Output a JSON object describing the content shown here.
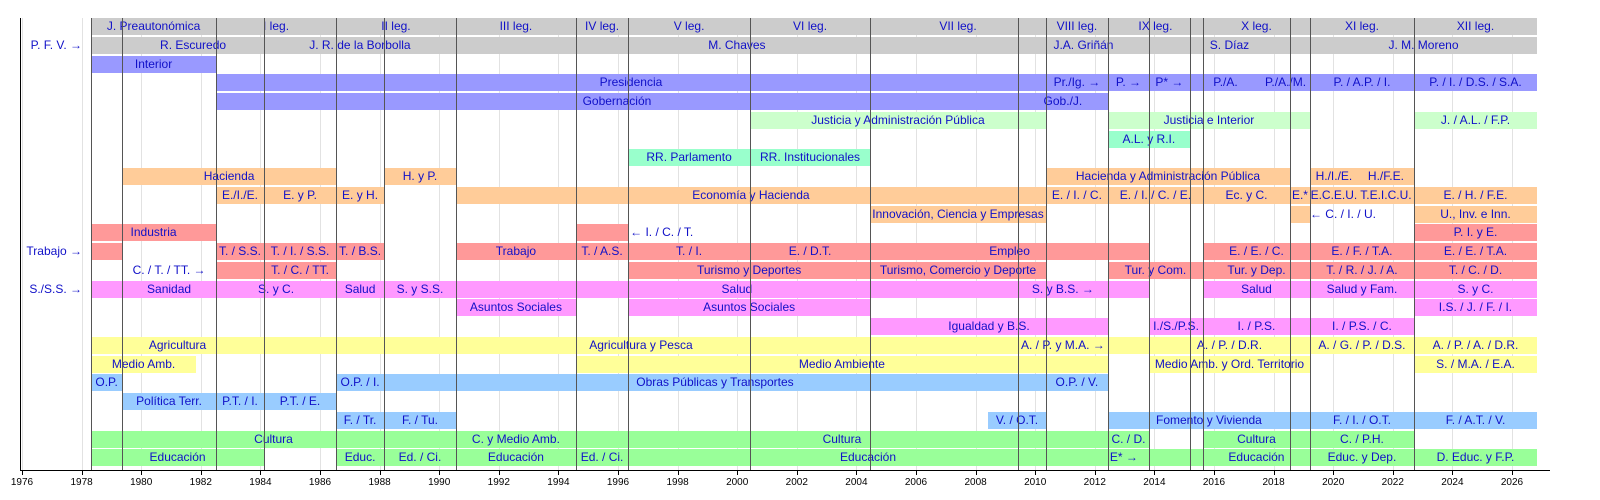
{
  "chart_data": {
    "type": "timeline",
    "title": "",
    "xlabel": "",
    "xlim": [
      1976,
      2026.9
    ],
    "xticks": [
      1976,
      1978,
      1980,
      1982,
      1984,
      1986,
      1988,
      1990,
      1992,
      1994,
      1996,
      1998,
      2000,
      2002,
      2004,
      2006,
      2008,
      2010,
      2012,
      2014,
      2016,
      2018,
      2020,
      2022,
      2024,
      2026
    ],
    "transitions": [
      1978.32,
      1979.36,
      1982.51,
      1984.12,
      1986.54,
      1988.15,
      1990.56,
      1994.59,
      1996.34,
      2000.43,
      2004.46,
      2009.42,
      2010.36,
      2012.44,
      2013.82,
      2015.19,
      2015.63,
      2018.55,
      2019.22,
      2022.71
    ],
    "rows": [
      {
        "name": "legislatures",
        "color": "#cccccc",
        "segments": [
          {
            "s": 1978.32,
            "e": 1982.51,
            "t": "J. Preautonómica"
          },
          {
            "s": 1982.51,
            "e": 1986.54,
            "t": "I leg."
          },
          {
            "s": 1986.54,
            "e": 1990.56,
            "t": "II leg."
          },
          {
            "s": 1990.56,
            "e": 1994.59,
            "t": "III leg."
          },
          {
            "s": 1994.59,
            "e": 1996.34,
            "t": "IV leg."
          },
          {
            "s": 1996.34,
            "e": 2000.43,
            "t": "V leg."
          },
          {
            "s": 2000.43,
            "e": 2004.46,
            "t": "VI leg."
          },
          {
            "s": 2004.46,
            "e": 2010.36,
            "t": "VII leg."
          },
          {
            "s": 2010.36,
            "e": 2012.44,
            "t": "VIII leg."
          },
          {
            "s": 2012.44,
            "e": 2015.63,
            "t": "IX leg."
          },
          {
            "s": 2015.63,
            "e": 2019.22,
            "t": "X leg."
          },
          {
            "s": 2019.22,
            "e": 2022.71,
            "t": "XI leg."
          },
          {
            "s": 2022.71,
            "e": 2026.84,
            "t": "XII leg."
          }
        ]
      },
      {
        "name": "presidents",
        "color": "#cccccc",
        "left": "P. F. V. →",
        "segments": [
          {
            "s": 1978.32,
            "e": 1979.36,
            "t": ""
          },
          {
            "s": 1979.36,
            "e": 1984.12,
            "t": "R. Escuredo"
          },
          {
            "s": 1984.12,
            "e": 1990.56,
            "t": "J. R. de la Borbolla"
          },
          {
            "s": 1990.56,
            "e": 2009.42,
            "t": "M. Chaves"
          },
          {
            "s": 2009.42,
            "e": 2013.82,
            "t": "J.A. Griñán"
          },
          {
            "s": 2013.82,
            "e": 2019.22,
            "t": "S. Díaz"
          },
          {
            "s": 2019.22,
            "e": 2026.84,
            "t": "J. M. Moreno"
          }
        ]
      },
      {
        "name": "interior",
        "color": "#9999ff",
        "segments": [
          {
            "s": 1978.32,
            "e": 1982.51,
            "t": "Interior"
          }
        ]
      },
      {
        "name": "presidencia",
        "color": "#9999ff",
        "segments": [
          {
            "s": 1982.51,
            "e": 2010.36,
            "t": "Presidencia"
          },
          {
            "s": 2010.36,
            "e": 2012.44,
            "t": "Pr./Ig. →"
          },
          {
            "s": 2012.44,
            "e": 2013.82,
            "t": "P. →"
          },
          {
            "s": 2013.82,
            "e": 2015.19,
            "t": "P* →"
          },
          {
            "s": 2015.19,
            "e": 2017.58,
            "t": "P./A."
          },
          {
            "s": 2017.58,
            "e": 2019.22,
            "t": "P./A./M."
          },
          {
            "s": 2019.22,
            "e": 2022.71,
            "t": "P. / A.P. / I."
          },
          {
            "s": 2022.71,
            "e": 2026.84,
            "t": "P. / I. / D.S. / S.A."
          }
        ]
      },
      {
        "name": "gobernacion",
        "color": "#9999ff",
        "segments": [
          {
            "s": 1982.51,
            "e": 2009.42,
            "t": "Gobernación"
          },
          {
            "s": 2009.42,
            "e": 2012.44,
            "t": "Gob./J."
          }
        ]
      },
      {
        "name": "justicia",
        "color": "#ccffcc",
        "segments": [
          {
            "s": 2000.43,
            "e": 2010.36,
            "t": "Justicia y Administración Pública"
          },
          {
            "s": 2012.44,
            "e": 2019.22,
            "t": "Justicia e Interior"
          },
          {
            "s": 2022.71,
            "e": 2026.84,
            "t": "J. / A.L. / F.P."
          }
        ]
      },
      {
        "name": "relaciones",
        "color": "#99ffcc",
        "segments": [
          {
            "s": 1996.34,
            "e": 2000.43,
            "t": "RR. Parlamento",
            "row": 7
          },
          {
            "s": 2012.44,
            "e": 2015.19,
            "t": "A.L. y R.I."
          }
        ]
      },
      {
        "name": "rr-institucionales",
        "color": "#99ffcc",
        "segments": [
          {
            "s": 1996.34,
            "e": 2000.43,
            "t": "RR. Parlamento"
          },
          {
            "s": 2000.43,
            "e": 2004.46,
            "t": "RR. Institucionales"
          }
        ]
      },
      {
        "name": "hacienda",
        "color": "#ffcc99",
        "segments": [
          {
            "s": 1979.36,
            "e": 1986.54,
            "t": "Hacienda"
          },
          {
            "s": 1988.15,
            "e": 1990.56,
            "t": "H. y P."
          },
          {
            "s": 2010.36,
            "e": 2018.55,
            "t": "Hacienda y Administración Pública"
          },
          {
            "s": 2019.22,
            "e": 2020.83,
            "t": "H./I./E."
          },
          {
            "s": 2020.83,
            "e": 2022.71,
            "t": "H./F.E."
          }
        ]
      },
      {
        "name": "economia",
        "color": "#ffcc99",
        "segments": [
          {
            "s": 1982.51,
            "e": 1984.12,
            "t": "E./I./E."
          },
          {
            "s": 1984.12,
            "e": 1986.54,
            "t": "E. y P."
          },
          {
            "s": 1986.54,
            "e": 1988.15,
            "t": "E. y H."
          },
          {
            "s": 1990.56,
            "e": 2010.36,
            "t": "Economía y Hacienda"
          },
          {
            "s": 2010.36,
            "e": 2012.44,
            "t": "E. / I. / C."
          },
          {
            "s": 2012.44,
            "e": 2015.63,
            "t": "E. / I. / C. / E."
          },
          {
            "s": 2015.63,
            "e": 2018.55,
            "t": "Ec. y C."
          },
          {
            "s": 2018.55,
            "e": 2019.22,
            "t": "E.*"
          },
          {
            "s": 2019.22,
            "e": 2020.83,
            "t": "E.C.E.U."
          },
          {
            "s": 2020.83,
            "e": 2022.71,
            "t": "T.E.I.C.U."
          },
          {
            "s": 2022.71,
            "e": 2026.84,
            "t": "E. / H. / F.E."
          }
        ]
      },
      {
        "name": "innovacion",
        "color": "#ffcc99",
        "segments": [
          {
            "s": 2004.46,
            "e": 2010.36,
            "t": "Innovación, Ciencia y Empresas"
          },
          {
            "s": 2018.55,
            "e": 2019.22,
            "t": ""
          },
          {
            "s": 2019.22,
            "e": 2020.83,
            "t": "← C. / I. / U.",
            "nobar": true
          },
          {
            "s": 2022.71,
            "e": 2026.84,
            "t": "U., Inv. e Inn."
          }
        ]
      },
      {
        "name": "industria",
        "color": "#ff9999",
        "segments": [
          {
            "s": 1978.32,
            "e": 1982.51,
            "t": "Industria"
          },
          {
            "s": 1994.59,
            "e": 1996.34,
            "t": ""
          },
          {
            "s": 1996.34,
            "e": 1999.0,
            "t": "← I. / C. / T.",
            "nobar": true,
            "align": "left"
          },
          {
            "s": 2022.71,
            "e": 2026.84,
            "t": "P. I. y E."
          }
        ]
      },
      {
        "name": "trabajo",
        "color": "#ff9999",
        "left": "Trabajo →",
        "segments": [
          {
            "s": 1978.32,
            "e": 1979.36,
            "t": ""
          },
          {
            "s": 1982.51,
            "e": 1984.12,
            "t": "T. / S.S."
          },
          {
            "s": 1984.12,
            "e": 1986.54,
            "t": "T. / I. / S.S."
          },
          {
            "s": 1986.54,
            "e": 1988.15,
            "t": "T. / B.S."
          },
          {
            "s": 1990.56,
            "e": 1994.59,
            "t": "Trabajo"
          },
          {
            "s": 1994.59,
            "e": 1996.34,
            "t": "T. / A.S."
          },
          {
            "s": 1996.34,
            "e": 2000.43,
            "t": "T. / I."
          },
          {
            "s": 2000.43,
            "e": 2004.46,
            "t": "E. / D.T."
          },
          {
            "s": 2004.46,
            "e": 2013.82,
            "t": "Empleo"
          },
          {
            "s": 2015.63,
            "e": 2019.22,
            "t": "E. / E. / C."
          },
          {
            "s": 2019.22,
            "e": 2022.71,
            "t": "E. / F. / T.A."
          },
          {
            "s": 2022.71,
            "e": 2026.84,
            "t": "E. / E. / T.A."
          }
        ]
      },
      {
        "name": "turismo",
        "color": "#ff9999",
        "segments": [
          {
            "s": 1979.36,
            "e": 1982.51,
            "t": "C. / T. / TT. →",
            "nobar": true
          },
          {
            "s": 1982.51,
            "e": 1984.12,
            "t": ""
          },
          {
            "s": 1984.12,
            "e": 1986.54,
            "t": "T. / C. / TT."
          },
          {
            "s": 1996.34,
            "e": 2004.46,
            "t": "Turismo y Deportes"
          },
          {
            "s": 2004.46,
            "e": 2010.36,
            "t": "Turismo, Comercio y Deporte"
          },
          {
            "s": 2012.44,
            "e": 2015.63,
            "t": "Tur. y Com."
          },
          {
            "s": 2015.63,
            "e": 2019.22,
            "t": "Tur. y Dep."
          },
          {
            "s": 2019.22,
            "e": 2022.71,
            "t": "T. / R. / J. / A."
          },
          {
            "s": 2022.71,
            "e": 2026.84,
            "t": "T. / C. / D."
          }
        ]
      },
      {
        "name": "sanidad",
        "color": "#ff99ff",
        "left": "S./S.S. →",
        "segments": [
          {
            "s": 1978.32,
            "e": 1979.36,
            "t": ""
          },
          {
            "s": 1979.36,
            "e": 1982.51,
            "t": "Sanidad"
          },
          {
            "s": 1982.51,
            "e": 1986.54,
            "t": "S. y C."
          },
          {
            "s": 1986.54,
            "e": 1988.15,
            "t": "Salud"
          },
          {
            "s": 1988.15,
            "e": 1990.56,
            "t": "S. y S.S."
          },
          {
            "s": 1990.56,
            "e": 2009.42,
            "t": "Salud"
          },
          {
            "s": 2009.42,
            "e": 2012.44,
            "t": "S. y B.S. →"
          },
          {
            "s": 2012.44,
            "e": 2013.82,
            "t": ""
          },
          {
            "s": 2015.63,
            "e": 2019.22,
            "t": "Salud"
          },
          {
            "s": 2019.22,
            "e": 2022.71,
            "t": "Salud y Fam."
          },
          {
            "s": 2022.71,
            "e": 2026.84,
            "t": "S. y C."
          }
        ]
      },
      {
        "name": "asuntos-sociales",
        "color": "#ff99ff",
        "segments": [
          {
            "s": 1990.56,
            "e": 1994.59,
            "t": "Asuntos Sociales"
          },
          {
            "s": 1996.34,
            "e": 2004.46,
            "t": "Asuntos Sociales"
          },
          {
            "s": 2022.71,
            "e": 2026.84,
            "t": "I.S. / J. / F. / I."
          }
        ]
      },
      {
        "name": "igualdad",
        "color": "#ff99ff",
        "segments": [
          {
            "s": 2004.46,
            "e": 2012.44,
            "t": "Igualdad y B.S."
          },
          {
            "s": 2013.82,
            "e": 2015.63,
            "t": "I./S./P.S."
          },
          {
            "s": 2015.63,
            "e": 2019.22,
            "t": "I. / P.S."
          },
          {
            "s": 2019.22,
            "e": 2022.71,
            "t": "I. / P.S. / C."
          }
        ]
      },
      {
        "name": "agricultura",
        "color": "#ffff99",
        "segments": [
          {
            "s": 1978.32,
            "e": 1984.12,
            "t": "Agricultura"
          },
          {
            "s": 1984.12,
            "e": 2009.42,
            "t": "Agricultura y Pesca"
          },
          {
            "s": 2009.42,
            "e": 2012.44,
            "t": "A. / P. y M.A. →"
          },
          {
            "s": 2012.44,
            "e": 2013.82,
            "t": ""
          },
          {
            "s": 2013.82,
            "e": 2019.22,
            "t": "A. / P. / D.R."
          },
          {
            "s": 2019.22,
            "e": 2022.71,
            "t": "A. / G. / P. / D.S."
          },
          {
            "s": 2022.71,
            "e": 2026.84,
            "t": "A. / P. / A. / D.R."
          }
        ]
      },
      {
        "name": "medio-ambiente",
        "color": "#ffff99",
        "segments": [
          {
            "s": 1978.32,
            "e": 1981.84,
            "t": "Medio Amb."
          },
          {
            "s": 1994.59,
            "e": 2012.44,
            "t": "Medio Ambiente"
          },
          {
            "s": 2013.82,
            "e": 2019.22,
            "t": "Medio Amb. y Ord. Territorio"
          },
          {
            "s": 2022.71,
            "e": 2026.84,
            "t": "S. / M.A. / E.A."
          }
        ]
      },
      {
        "name": "obras-publicas",
        "color": "#99ccff",
        "segments": [
          {
            "s": 1978.32,
            "e": 1979.36,
            "t": "O.P."
          },
          {
            "s": 1986.54,
            "e": 1988.15,
            "t": "O.P. / I."
          },
          {
            "s": 1988.15,
            "e": 2010.36,
            "t": "Obras Públicas y Transportes"
          },
          {
            "s": 2010.36,
            "e": 2012.44,
            "t": "O.P. / V."
          }
        ]
      },
      {
        "name": "politica-territorial",
        "color": "#99ccff",
        "segments": [
          {
            "s": 1979.36,
            "e": 1982.51,
            "t": "Política Terr."
          },
          {
            "s": 1982.51,
            "e": 1984.12,
            "t": "P.T. / I."
          },
          {
            "s": 1984.12,
            "e": 1986.54,
            "t": "P.T. / E."
          }
        ]
      },
      {
        "name": "fomento",
        "color": "#99ccff",
        "segments": [
          {
            "s": 1986.54,
            "e": 1988.15,
            "t": "F. / Tr."
          },
          {
            "s": 1988.15,
            "e": 1990.56,
            "t": "F. / Tu."
          },
          {
            "s": 2008.42,
            "e": 2010.36,
            "t": "V. / O.T."
          },
          {
            "s": 2012.44,
            "e": 2019.22,
            "t": "Fomento y Vivienda"
          },
          {
            "s": 2019.22,
            "e": 2022.71,
            "t": "F. / I. / O.T."
          },
          {
            "s": 2022.71,
            "e": 2026.84,
            "t": "F. / A.T. / V."
          }
        ]
      },
      {
        "name": "cultura",
        "color": "#99ff99",
        "segments": [
          {
            "s": 1978.32,
            "e": 1990.56,
            "t": "Cultura"
          },
          {
            "s": 1990.56,
            "e": 1994.59,
            "t": "C. y Medio Amb."
          },
          {
            "s": 1994.59,
            "e": 2012.44,
            "t": "Cultura"
          },
          {
            "s": 2012.44,
            "e": 2013.82,
            "t": "C. / D."
          },
          {
            "s": 2015.63,
            "e": 2019.22,
            "t": "Cultura"
          },
          {
            "s": 2019.22,
            "e": 2022.71,
            "t": "C. / P.H."
          }
        ]
      },
      {
        "name": "educacion",
        "color": "#99ff99",
        "segments": [
          {
            "s": 1978.32,
            "e": 1984.12,
            "t": "Educación"
          },
          {
            "s": 1986.54,
            "e": 1988.15,
            "t": "Educ."
          },
          {
            "s": 1988.15,
            "e": 1990.56,
            "t": "Ed. / Ci."
          },
          {
            "s": 1990.56,
            "e": 1994.59,
            "t": "Educación"
          },
          {
            "s": 1994.59,
            "e": 1996.34,
            "t": "Ed. / Ci."
          },
          {
            "s": 1996.34,
            "e": 2012.44,
            "t": "Educación"
          },
          {
            "s": 2012.44,
            "e": 2015.63,
            "t": "E* →",
            "align": "left"
          },
          {
            "s": 2015.63,
            "e": 2019.22,
            "t": "Educación"
          },
          {
            "s": 2019.22,
            "e": 2022.71,
            "t": "Educ. y Dep."
          },
          {
            "s": 2022.71,
            "e": 2026.84,
            "t": "D. Educ. y F.P."
          }
        ]
      }
    ]
  }
}
